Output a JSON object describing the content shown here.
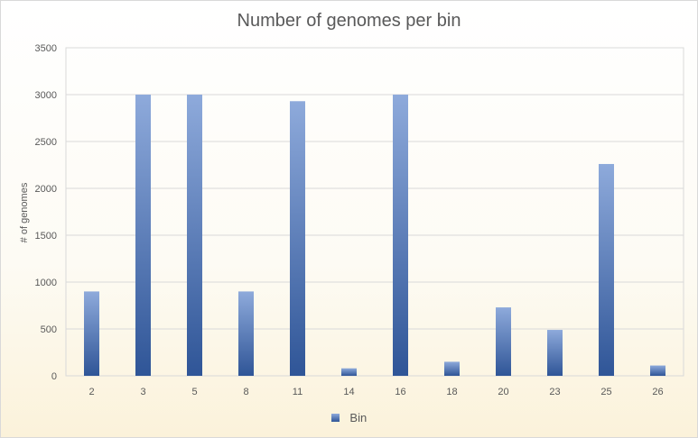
{
  "chart_data": {
    "type": "bar",
    "title": "Number of genomes per bin",
    "xlabel": "",
    "ylabel": "# of genomes",
    "categories": [
      "2",
      "3",
      "5",
      "8",
      "11",
      "14",
      "16",
      "18",
      "20",
      "23",
      "25",
      "26"
    ],
    "series": [
      {
        "name": "Bin",
        "values": [
          900,
          3000,
          3000,
          900,
          2930,
          80,
          3000,
          150,
          730,
          490,
          2260,
          110
        ]
      }
    ],
    "ylim": [
      0,
      3500
    ],
    "yticks": [
      "0",
      "500",
      "1000",
      "1500",
      "2000",
      "2500",
      "3000",
      "3500"
    ],
    "grid": true,
    "legend_position": "bottom",
    "colors": {
      "bar_top": "#8eaadb",
      "bar_bottom": "#2f5597",
      "grid": "#d9d9d9",
      "text": "#595959"
    }
  }
}
